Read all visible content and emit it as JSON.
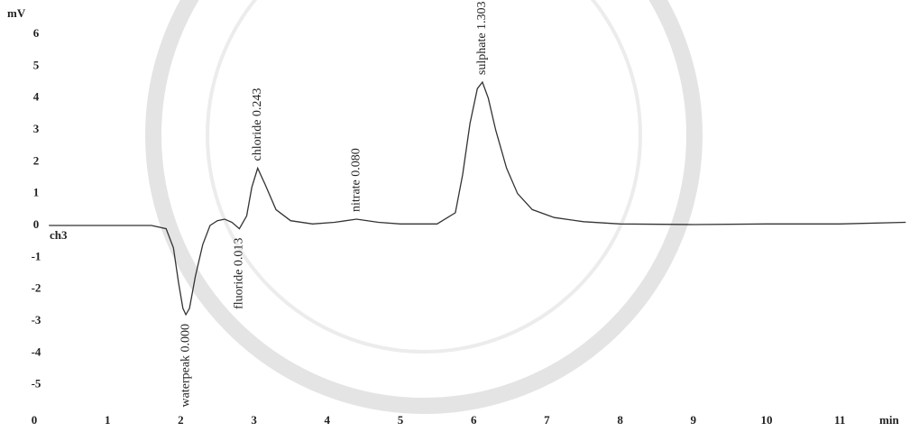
{
  "chart_data": {
    "type": "line",
    "x_label": "min",
    "y_label": "mV",
    "xlim": [
      0,
      11.9
    ],
    "ylim": [
      -6.2,
      6.4
    ],
    "xticks": [
      0,
      1,
      2,
      3,
      4,
      5,
      6,
      7,
      8,
      9,
      10,
      11
    ],
    "yticks": [
      6,
      5,
      4,
      3,
      2,
      1,
      0,
      -1,
      -2,
      -3,
      -4,
      -5
    ],
    "series": [
      {
        "name": "ch3",
        "color": "#333333",
        "x": [
          0.2,
          1.6,
          1.8,
          1.9,
          1.97,
          2.03,
          2.07,
          2.12,
          2.2,
          2.3,
          2.4,
          2.5,
          2.6,
          2.7,
          2.8,
          2.9,
          2.97,
          3.05,
          3.15,
          3.3,
          3.5,
          3.8,
          4.1,
          4.4,
          4.7,
          5.0,
          5.5,
          5.75,
          5.85,
          5.95,
          6.05,
          6.12,
          6.2,
          6.3,
          6.45,
          6.6,
          6.8,
          7.1,
          7.5,
          8.0,
          9.0,
          10.0,
          11.0,
          11.9
        ],
        "values": [
          0,
          0,
          -0.1,
          -0.7,
          -1.8,
          -2.6,
          -2.8,
          -2.6,
          -1.6,
          -0.6,
          0,
          0.15,
          0.2,
          0.1,
          -0.1,
          0.3,
          1.2,
          1.8,
          1.3,
          0.5,
          0.15,
          0.05,
          0.1,
          0.2,
          0.1,
          0.05,
          0.05,
          0.4,
          1.6,
          3.2,
          4.3,
          4.5,
          4.0,
          3.0,
          1.8,
          1.0,
          0.5,
          0.25,
          0.12,
          0.05,
          0.03,
          0.05,
          0.05,
          0.1
        ]
      }
    ],
    "annotations": [
      {
        "text": "waterpeak 0.000",
        "x": 2.07
      },
      {
        "text": "fluoride 0.013",
        "x": 2.8
      },
      {
        "text": "chloride 0.243",
        "x": 3.05
      },
      {
        "text": "nitrate 0.080",
        "x": 4.4
      },
      {
        "text": "sulphate 1.303",
        "x": 6.12
      }
    ]
  }
}
